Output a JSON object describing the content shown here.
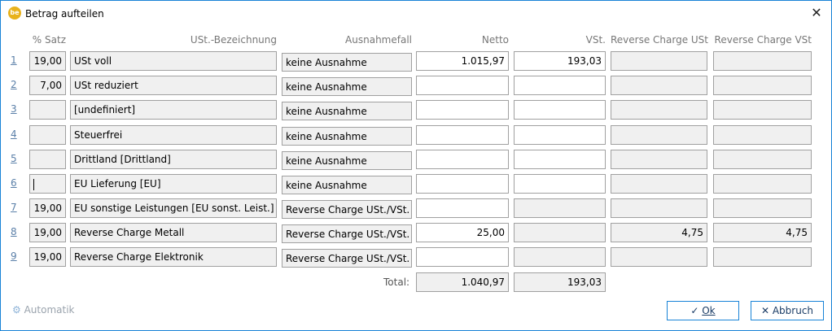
{
  "window": {
    "title": "Betrag aufteilen",
    "logo": "be"
  },
  "headers": {
    "satz": "% Satz",
    "bezeichnung": "USt.-Bezeichnung",
    "ausnahme": "Ausnahmefall",
    "netto": "Netto",
    "vst": "VSt.",
    "rc_ust": "Reverse Charge USt",
    "rc_vst": "Reverse Charge VSt"
  },
  "rows": [
    {
      "index": "1",
      "satz": "19,00",
      "bezeichnung": "USt voll",
      "ausnahme": "keine Ausnahme",
      "netto": "1.015,97",
      "vst": "193,03",
      "rc_ust": "",
      "rc_vst": "",
      "vst_editable": true
    },
    {
      "index": "2",
      "satz": "7,00",
      "bezeichnung": "USt reduziert",
      "ausnahme": "keine Ausnahme",
      "netto": "",
      "vst": "",
      "rc_ust": "",
      "rc_vst": "",
      "vst_editable": true
    },
    {
      "index": "3",
      "satz": "",
      "bezeichnung": "[undefiniert]",
      "ausnahme": "keine Ausnahme",
      "netto": "",
      "vst": "",
      "rc_ust": "",
      "rc_vst": "",
      "vst_editable": true
    },
    {
      "index": "4",
      "satz": "",
      "bezeichnung": "Steuerfrei",
      "ausnahme": "keine Ausnahme",
      "netto": "",
      "vst": "",
      "rc_ust": "",
      "rc_vst": "",
      "vst_editable": true
    },
    {
      "index": "5",
      "satz": "",
      "bezeichnung": "Drittland [Drittland]",
      "ausnahme": "keine Ausnahme",
      "netto": "",
      "vst": "",
      "rc_ust": "",
      "rc_vst": "",
      "vst_editable": true
    },
    {
      "index": "6",
      "satz": "",
      "bezeichnung": "EU Lieferung [EU]",
      "ausnahme": "keine Ausnahme",
      "netto": "",
      "vst": "",
      "rc_ust": "",
      "rc_vst": "",
      "vst_editable": true,
      "focused": true
    },
    {
      "index": "7",
      "satz": "19,00",
      "bezeichnung": "EU sonstige Leistungen [EU sonst. Leist.]",
      "ausnahme": "Reverse Charge USt./VSt.",
      "netto": "",
      "vst": "",
      "rc_ust": "",
      "rc_vst": "",
      "vst_editable": false
    },
    {
      "index": "8",
      "satz": "19,00",
      "bezeichnung": "Reverse Charge Metall",
      "ausnahme": "Reverse Charge USt./VSt.",
      "netto": "25,00",
      "vst": "",
      "rc_ust": "4,75",
      "rc_vst": "4,75",
      "vst_editable": false
    },
    {
      "index": "9",
      "satz": "19,00",
      "bezeichnung": "Reverse Charge Elektronik",
      "ausnahme": "Reverse Charge USt./VSt.",
      "netto": "",
      "vst": "",
      "rc_ust": "",
      "rc_vst": "",
      "vst_editable": false
    }
  ],
  "totals": {
    "label": "Total:",
    "netto": "1.040,97",
    "vst": "193,03"
  },
  "buttons": {
    "automatik": "Automatik",
    "ok": "Ok",
    "abbruch": "Abbruch"
  }
}
